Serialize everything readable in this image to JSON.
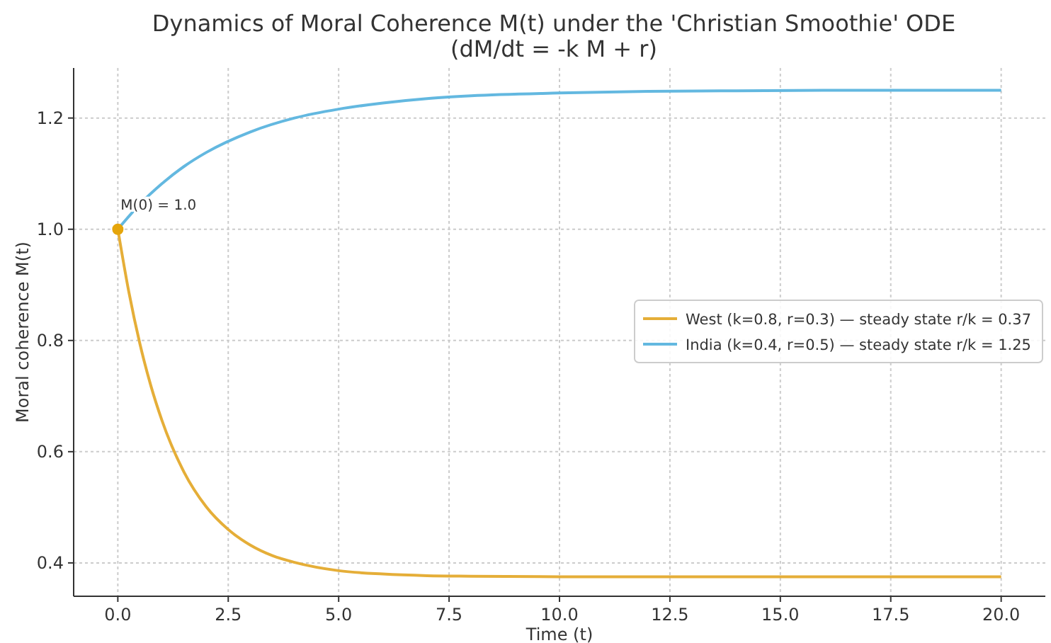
{
  "chart_data": {
    "type": "line",
    "title": "Dynamics of Moral Coherence M(t) under the 'Christian Smoothie' ODE",
    "subtitle": "(dM/dt = -k M + r)",
    "xlabel": "Time (t)",
    "ylabel": "Moral coherence M(t)",
    "xlim": [
      -1,
      21
    ],
    "ylim": [
      0.34,
      1.29
    ],
    "xticks": [
      {
        "value": 0,
        "label": "0.0"
      },
      {
        "value": 2.5,
        "label": "2.5"
      },
      {
        "value": 5,
        "label": "5.0"
      },
      {
        "value": 7.5,
        "label": "7.5"
      },
      {
        "value": 10,
        "label": "10.0"
      },
      {
        "value": 12.5,
        "label": "12.5"
      },
      {
        "value": 15,
        "label": "15.0"
      },
      {
        "value": 17.5,
        "label": "17.5"
      },
      {
        "value": 20,
        "label": "20.0"
      }
    ],
    "yticks": [
      0.4,
      0.6,
      0.8,
      {
        "value": 1,
        "label": "1.0"
      },
      1.2
    ],
    "grid": true,
    "legend": "right",
    "line_style": "solid",
    "annotations": [
      {
        "text": "M(0) = 1.0",
        "x": 0,
        "y": 1.0
      }
    ],
    "series": [
      {
        "name": "West (k=0.8, r=0.3)  — steady state r/k = 0.37",
        "color": "#e5ae38",
        "x": [
          0,
          0.25,
          0.5,
          0.75,
          1,
          1.5,
          2,
          2.5,
          3,
          3.5,
          4,
          5,
          6,
          7,
          8,
          10,
          12.5,
          15,
          17.5,
          20
        ],
        "values": [
          1.0,
          0.887,
          0.794,
          0.718,
          0.656,
          0.563,
          0.501,
          0.46,
          0.432,
          0.413,
          0.401,
          0.386,
          0.38,
          0.377,
          0.376,
          0.375,
          0.375,
          0.375,
          0.375,
          0.375
        ]
      },
      {
        "name": "India (k=0.4, r=0.5)  — steady state r/k = 1.25",
        "color": "#63b8e0",
        "x": [
          0,
          0.5,
          1,
          1.5,
          2,
          3,
          4,
          5,
          6,
          7,
          8,
          10,
          12,
          14,
          16,
          20
        ],
        "values": [
          1.0,
          1.045,
          1.082,
          1.113,
          1.138,
          1.175,
          1.2,
          1.216,
          1.227,
          1.235,
          1.24,
          1.245,
          1.248,
          1.249,
          1.25,
          1.25
        ]
      },
      {
        "type": "scatter",
        "color": "#e5a50a",
        "marker": "circle",
        "x": [
          0
        ],
        "values": [
          1.0
        ]
      }
    ]
  }
}
